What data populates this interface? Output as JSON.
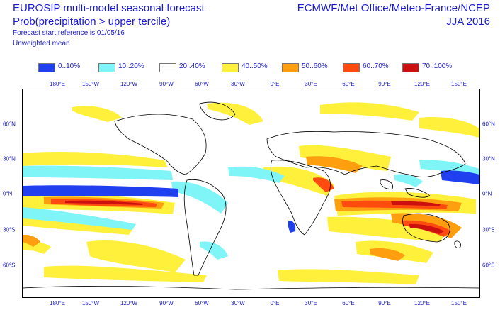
{
  "header": {
    "title": "EUROSIP multi-model seasonal forecast",
    "subtitle": "Prob(precipitation > upper tercile)",
    "start_reference": "Forecast start reference is 01/05/16",
    "weighting": "Unweighted mean",
    "centres": "ECMWF/Met Office/Meteo-France/NCEP",
    "season": "JJA 2016"
  },
  "legend": [
    {
      "label": "0..10%",
      "color": "#2040f0"
    },
    {
      "label": "10..20%",
      "color": "#7ff5f8"
    },
    {
      "label": "20..40%",
      "color": "#ffffff"
    },
    {
      "label": "40..50%",
      "color": "#fff03c"
    },
    {
      "label": "50..60%",
      "color": "#ff9f10"
    },
    {
      "label": "60..70%",
      "color": "#ff4a10"
    },
    {
      "label": "70..100%",
      "color": "#cc1010"
    }
  ],
  "axes": {
    "lon_labels": [
      "180°E",
      "150°W",
      "120°W",
      "90°W",
      "60°W",
      "30°W",
      "0°E",
      "30°E",
      "60°E",
      "90°E",
      "120°E",
      "150°E"
    ],
    "lat_labels": [
      "60°N",
      "30°N",
      "0°N",
      "30°S",
      "60°S"
    ]
  }
}
